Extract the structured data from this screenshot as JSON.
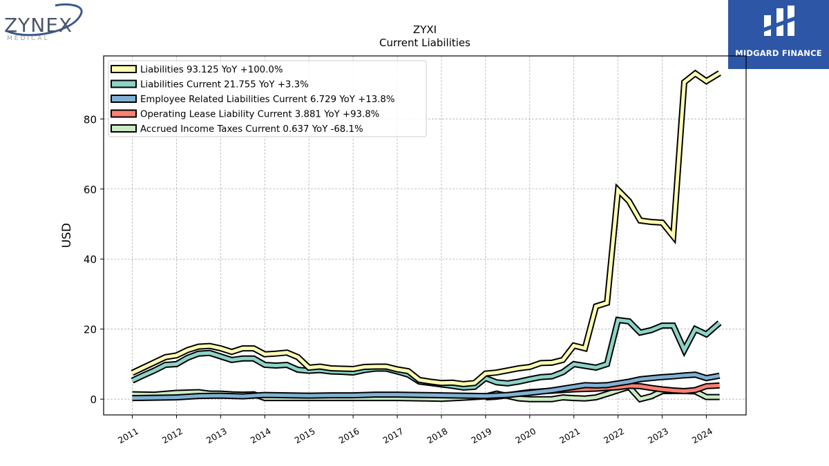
{
  "logos": {
    "left_brand": "ZYNEX",
    "left_sub": "MEDICAL",
    "right_brand": "MIDGARD FINANCE"
  },
  "chart_data": {
    "type": "line",
    "title": "ZYXI",
    "subtitle": "Current  Liabilities",
    "ylabel": "USD",
    "xlabel": "",
    "ylim": [
      -4.5,
      98
    ],
    "xlim": [
      2010.35,
      2024.9
    ],
    "yticks": [
      0,
      20,
      40,
      60,
      80
    ],
    "xticks": [
      2011,
      2012,
      2013,
      2014,
      2015,
      2016,
      2017,
      2018,
      2019,
      2020,
      2021,
      2022,
      2023,
      2024
    ],
    "grid": true,
    "legend_position": "top-left",
    "series": [
      {
        "name": "Liabilities",
        "legend": "Liabilities  93.125 YoY +100.0%",
        "color": "#ffffb3",
        "x": [
          2011.0,
          2011.25,
          2011.5,
          2011.75,
          2012.0,
          2012.25,
          2012.5,
          2012.75,
          2013.0,
          2013.25,
          2013.5,
          2013.75,
          2014.0,
          2014.25,
          2014.5,
          2014.75,
          2015.0,
          2015.25,
          2015.5,
          2015.75,
          2016.0,
          2016.25,
          2016.5,
          2016.75,
          2017.0,
          2017.25,
          2017.5,
          2017.75,
          2018.0,
          2018.25,
          2018.5,
          2018.75,
          2019.0,
          2019.25,
          2019.5,
          2019.75,
          2020.0,
          2020.25,
          2020.5,
          2020.75,
          2021.0,
          2021.25,
          2021.5,
          2021.75,
          2022.0,
          2022.25,
          2022.5,
          2022.75,
          2023.0,
          2023.25,
          2023.5,
          2023.75,
          2024.0,
          2024.3
        ],
        "values": [
          7.5,
          9.0,
          10.5,
          12.0,
          12.5,
          14.0,
          15.0,
          15.2,
          14.5,
          13.5,
          14.5,
          14.5,
          12.8,
          13.0,
          13.3,
          12.0,
          9.0,
          9.3,
          8.8,
          8.7,
          8.6,
          9.2,
          9.3,
          9.3,
          8.5,
          8.0,
          5.5,
          5.0,
          4.6,
          4.7,
          4.3,
          4.6,
          7.3,
          7.6,
          8.2,
          8.8,
          9.2,
          10.3,
          10.4,
          11.2,
          15.3,
          14.5,
          26.5,
          27.5,
          59.7,
          56.5,
          51.0,
          50.6,
          50.4,
          46.5,
          90.5,
          93.0,
          90.8,
          93.1
        ]
      },
      {
        "name": "Liabilities Current",
        "legend": "Liabilities Current  21.755 YoY +3.3%",
        "color": "#8dd3c7",
        "x": [
          2011.0,
          2011.25,
          2011.5,
          2011.75,
          2012.0,
          2012.25,
          2012.5,
          2012.75,
          2013.0,
          2013.25,
          2013.5,
          2013.75,
          2014.0,
          2014.25,
          2014.5,
          2014.75,
          2015.0,
          2015.25,
          2015.5,
          2015.75,
          2016.0,
          2016.25,
          2016.5,
          2016.75,
          2017.0,
          2017.25,
          2017.5,
          2017.75,
          2018.0,
          2018.25,
          2018.5,
          2018.75,
          2019.0,
          2019.25,
          2019.5,
          2019.75,
          2020.0,
          2020.25,
          2020.5,
          2020.75,
          2021.0,
          2021.25,
          2021.5,
          2021.75,
          2022.0,
          2022.25,
          2022.5,
          2022.75,
          2023.0,
          2023.25,
          2023.5,
          2023.75,
          2024.0,
          2024.3
        ],
        "values": [
          5.3,
          6.8,
          8.2,
          9.8,
          10.0,
          11.8,
          13.0,
          13.2,
          12.2,
          11.2,
          11.6,
          11.6,
          9.8,
          9.6,
          9.8,
          8.4,
          8.1,
          8.3,
          7.9,
          7.8,
          7.6,
          8.3,
          8.7,
          8.7,
          7.9,
          7.0,
          5.0,
          4.6,
          4.2,
          3.8,
          3.3,
          3.5,
          6.0,
          4.8,
          4.5,
          5.0,
          5.7,
          6.3,
          6.5,
          7.7,
          10.0,
          9.5,
          9.0,
          10.0,
          22.6,
          22.2,
          19.0,
          19.7,
          21.0,
          21.0,
          14.0,
          20.0,
          18.5,
          21.8
        ]
      },
      {
        "name": "Employee Related Liabilities Current",
        "legend": "Employee Related Liabilities Current  6.729 YoY +13.8%",
        "color": "#80b1d3",
        "x": [
          2011.0,
          2011.5,
          2012.0,
          2012.5,
          2013.0,
          2013.5,
          2014.0,
          2014.5,
          2015.0,
          2015.5,
          2016.0,
          2016.5,
          2017.0,
          2017.5,
          2018.0,
          2018.5,
          2019.0,
          2019.5,
          2020.0,
          2020.5,
          2021.0,
          2021.25,
          2021.5,
          2021.75,
          2022.0,
          2022.25,
          2022.5,
          2022.75,
          2023.0,
          2023.25,
          2023.5,
          2023.75,
          2024.0,
          2024.3
        ],
        "values": [
          0.3,
          0.4,
          0.5,
          0.9,
          1.0,
          0.8,
          1.2,
          1.1,
          1.0,
          1.1,
          1.1,
          1.3,
          1.3,
          1.2,
          1.1,
          1.0,
          0.9,
          1.2,
          1.8,
          2.5,
          3.5,
          4.0,
          3.9,
          4.0,
          4.5,
          5.0,
          5.7,
          6.0,
          6.3,
          6.5,
          6.8,
          7.0,
          6.0,
          6.7
        ]
      },
      {
        "name": "Operating Lease Liability Current",
        "legend": "Operating Lease Liability Current  3.881 YoY +93.8%",
        "color": "#fb8072",
        "x": [
          2019.0,
          2019.25,
          2019.5,
          2019.75,
          2020.0,
          2020.25,
          2020.5,
          2020.75,
          2021.0,
          2021.25,
          2021.5,
          2021.75,
          2022.0,
          2022.25,
          2022.5,
          2022.75,
          2023.0,
          2023.25,
          2023.5,
          2023.75,
          2024.0,
          2024.3
        ],
        "values": [
          0.5,
          0.7,
          1.1,
          1.6,
          2.0,
          2.2,
          2.4,
          2.6,
          2.8,
          2.9,
          3.0,
          3.2,
          3.4,
          3.8,
          3.7,
          3.2,
          2.8,
          2.5,
          2.3,
          2.6,
          3.7,
          3.9
        ]
      },
      {
        "name": "Accrued Income Taxes Current",
        "legend": "Accrued Income Taxes Current  0.637 YoY -68.1%",
        "color": "#ccebc5",
        "x": [
          2011.0,
          2011.5,
          2012.0,
          2012.5,
          2012.75,
          2013.0,
          2013.25,
          2013.5,
          2013.75,
          2014.0,
          2015.0,
          2016.0,
          2017.0,
          2018.0,
          2018.5,
          2019.0,
          2019.25,
          2019.5,
          2019.75,
          2020.0,
          2020.25,
          2020.5,
          2020.75,
          2021.0,
          2021.25,
          2021.5,
          2021.75,
          2022.0,
          2022.25,
          2022.5,
          2022.75,
          2023.0,
          2023.25,
          2023.5,
          2023.75,
          2024.0,
          2024.3
        ],
        "values": [
          1.4,
          1.3,
          1.8,
          2.0,
          1.6,
          1.6,
          1.4,
          1.3,
          1.4,
          0.3,
          0.3,
          0.3,
          0.3,
          0.1,
          0.4,
          0.8,
          1.6,
          0.9,
          0.2,
          0.0,
          0.0,
          0.0,
          0.5,
          0.3,
          0.2,
          0.5,
          1.5,
          2.5,
          3.5,
          0.0,
          0.8,
          2.3,
          2.3,
          2.3,
          2.2,
          0.6,
          0.6
        ]
      }
    ]
  }
}
